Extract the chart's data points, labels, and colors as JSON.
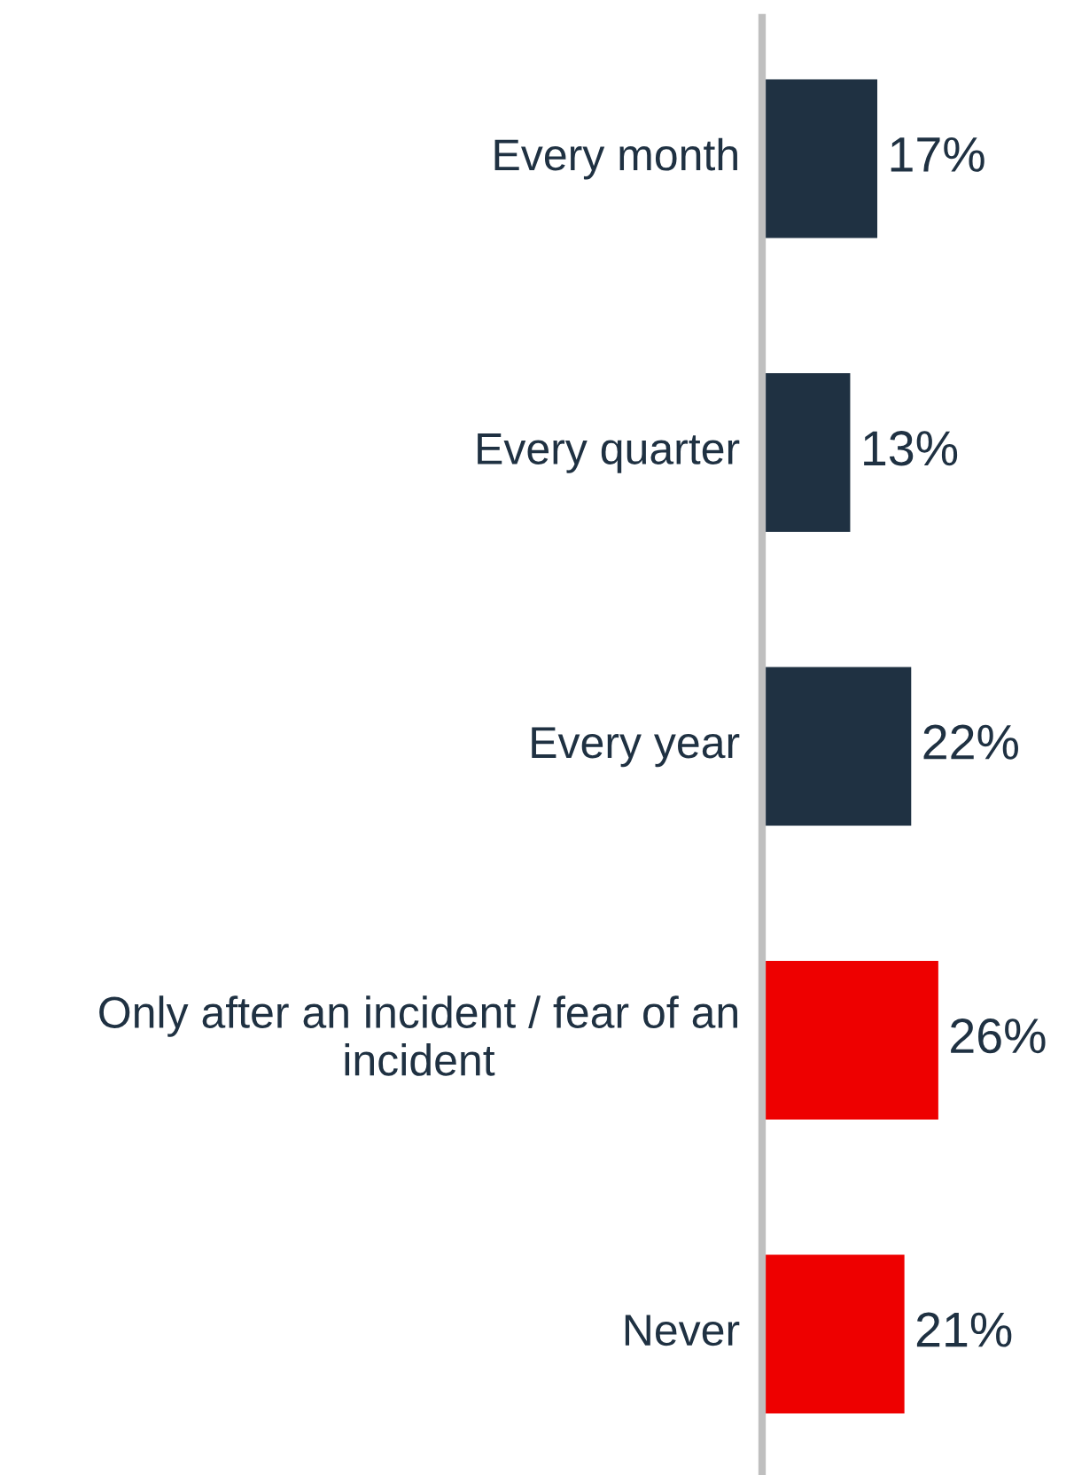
{
  "chart_data": {
    "type": "bar",
    "orientation": "horizontal",
    "categories": [
      "Every month",
      "Every quarter",
      "Every year",
      "Only after an incident / fear of an incident",
      "Never"
    ],
    "values": [
      17,
      13,
      22,
      26,
      21
    ],
    "colors": [
      "#1f3142",
      "#1f3142",
      "#1f3142",
      "#ee0000",
      "#ee0000"
    ],
    "value_labels": [
      "17%",
      "13%",
      "22%",
      "26%",
      "21%"
    ],
    "legend": false
  }
}
